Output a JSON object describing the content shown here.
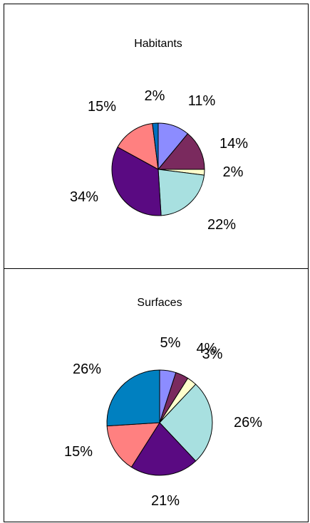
{
  "chart_data": [
    {
      "type": "pie",
      "title": "Habitants",
      "slices": [
        {
          "label": "11%",
          "value": 11,
          "color": "#8c8cff"
        },
        {
          "label": "14%",
          "value": 14,
          "color": "#7a2a5e"
        },
        {
          "label": "2%",
          "value": 2,
          "color": "#ffffcc"
        },
        {
          "label": "22%",
          "value": 22,
          "color": "#a8e0e0"
        },
        {
          "label": "34%",
          "value": 34,
          "color": "#5a0a82"
        },
        {
          "label": "15%",
          "value": 15,
          "color": "#ff8080"
        },
        {
          "label": "2%",
          "value": 2,
          "color": "#0070c0"
        }
      ]
    },
    {
      "type": "pie",
      "title": "Surfaces",
      "slices": [
        {
          "label": "5%",
          "value": 5,
          "color": "#8c8cff"
        },
        {
          "label": "4%",
          "value": 4,
          "color": "#7a2a5e"
        },
        {
          "label": "3%",
          "value": 3,
          "color": "#ffffcc"
        },
        {
          "label": "26%",
          "value": 26,
          "color": "#a8e0e0"
        },
        {
          "label": "21%",
          "value": 21,
          "color": "#5a0a82"
        },
        {
          "label": "15%",
          "value": 15,
          "color": "#ff8080"
        },
        {
          "label": "26%",
          "value": 26,
          "color": "#0080c0"
        }
      ]
    }
  ]
}
